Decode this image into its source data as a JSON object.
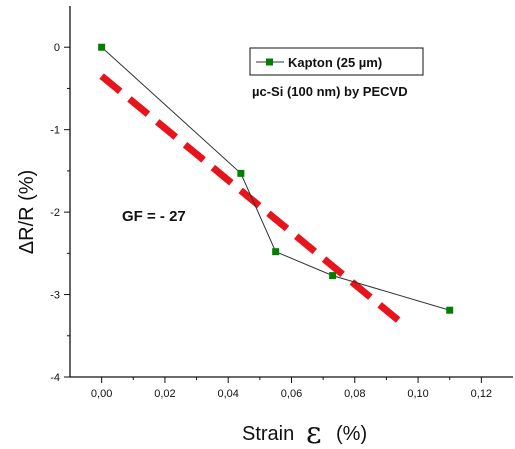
{
  "chart_data": {
    "type": "line",
    "xlabel": "Strain",
    "xlabel_symbol": "ε",
    "xlabel_unit": "(%)",
    "ylabel": "ΔR/R (%)",
    "xlim": [
      -0.01,
      0.13
    ],
    "ylim": [
      -4,
      0.5
    ],
    "xticks": [
      "0,00",
      "0,02",
      "0,04",
      "0,06",
      "0,08",
      "0,10",
      "0,12"
    ],
    "xtick_values": [
      0.0,
      0.02,
      0.04,
      0.06,
      0.08,
      0.1,
      0.12
    ],
    "yticks": [
      "0",
      "-1",
      "-2",
      "-3",
      "-4"
    ],
    "ytick_values": [
      0,
      -1,
      -2,
      -3,
      -4
    ],
    "grid": false,
    "legend_position": "top-right",
    "series": [
      {
        "name": "Kapton (25 µm)",
        "color": "#008000",
        "marker": "square",
        "x": [
          0.0,
          0.044,
          0.055,
          0.073,
          0.11
        ],
        "y": [
          0.0,
          -1.53,
          -2.48,
          -2.77,
          -3.19
        ]
      },
      {
        "color": "#e8141b",
        "style": "dashed",
        "x": [
          0.0,
          0.095
        ],
        "y": [
          -0.35,
          -3.35
        ]
      }
    ],
    "legend_subtitle": "µc-Si (100 nm) by PECVD",
    "annotation": "GF = - 27"
  }
}
